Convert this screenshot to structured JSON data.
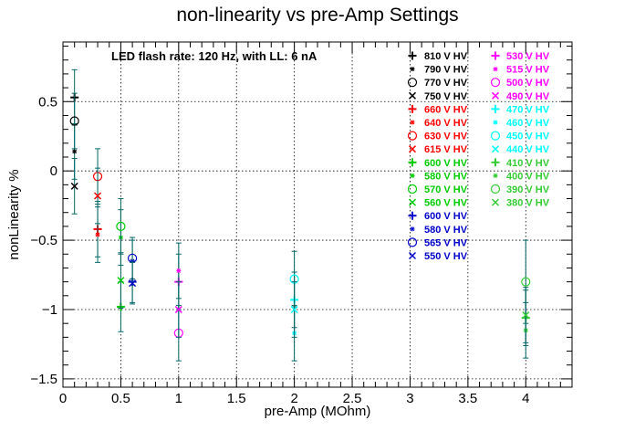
{
  "chart_data": {
    "type": "scatter",
    "title": "non-linearity vs pre-Amp Settings",
    "xlabel": "pre-Amp (MOhm)",
    "ylabel": "nonLinearity %",
    "xlim": [
      0,
      4.4
    ],
    "ylim": [
      -1.56,
      0.93
    ],
    "grid": true,
    "x_ticks": [
      "0",
      "0.5",
      "1",
      "1.5",
      "2",
      "2.5",
      "3",
      "3.5",
      "4"
    ],
    "y_ticks": [
      "0.5",
      "0",
      "−0.5",
      "−1",
      "−1.5"
    ],
    "annotation": "LED flash rate: 120 Hz, with LL: 6 nA",
    "legend_position": "top-right",
    "series": [
      {
        "name": "810 V HV",
        "color": "#000000",
        "marker": "plus",
        "points": [
          [
            0.1,
            0.53,
            0.2
          ]
        ]
      },
      {
        "name": "790 V HV",
        "color": "#000000",
        "marker": "star",
        "points": [
          [
            0.1,
            0.14,
            0.2
          ]
        ]
      },
      {
        "name": "770 V HV",
        "color": "#000000",
        "marker": "circle",
        "points": [
          [
            0.1,
            0.36,
            0.2
          ]
        ]
      },
      {
        "name": "750 V HV",
        "color": "#000000",
        "marker": "x",
        "points": [
          [
            0.1,
            -0.11,
            0.2
          ]
        ]
      },
      {
        "name": "660 V HV",
        "color": "#ff0000",
        "marker": "plus",
        "points": [
          [
            0.3,
            -0.42,
            0.2
          ]
        ]
      },
      {
        "name": "640 V HV",
        "color": "#ff0000",
        "marker": "star",
        "points": [
          [
            0.3,
            -0.46,
            0.2
          ]
        ]
      },
      {
        "name": "630 V HV",
        "color": "#ff0000",
        "marker": "circle",
        "points": [
          [
            0.3,
            -0.04,
            0.2
          ]
        ]
      },
      {
        "name": "615 V HV",
        "color": "#ff0000",
        "marker": "x",
        "points": [
          [
            0.3,
            -0.18,
            0.2
          ]
        ]
      },
      {
        "name": "600 V HV",
        "color": "#00cc00",
        "marker": "plus",
        "points": [
          [
            0.5,
            -0.98,
            0.18
          ]
        ]
      },
      {
        "name": "580 V HV",
        "color": "#00cc00",
        "marker": "star",
        "points": [
          [
            0.5,
            -0.48,
            0.2
          ]
        ]
      },
      {
        "name": "570 V HV",
        "color": "#00cc00",
        "marker": "circle",
        "points": [
          [
            0.5,
            -0.4,
            0.2
          ]
        ]
      },
      {
        "name": "560 V HV",
        "color": "#00cc00",
        "marker": "x",
        "points": [
          [
            0.5,
            -0.79,
            0.2
          ]
        ]
      },
      {
        "name": "600 V HV",
        "color": "#0000cc",
        "marker": "plus",
        "points": [
          [
            0.6,
            -0.8,
            0.15
          ]
        ]
      },
      {
        "name": "580 V HV",
        "color": "#0000cc",
        "marker": "star",
        "points": [
          [
            0.6,
            -0.65,
            0.15
          ]
        ]
      },
      {
        "name": "565 V HV",
        "color": "#0000cc",
        "marker": "circle",
        "points": [
          [
            0.6,
            -0.63,
            0.15
          ]
        ]
      },
      {
        "name": "550 V HV",
        "color": "#0000cc",
        "marker": "x",
        "points": [
          [
            0.6,
            -0.81,
            0.15
          ]
        ]
      },
      {
        "name": "530 V HV",
        "color": "#ff00ff",
        "marker": "plus",
        "points": [
          [
            1.0,
            -0.8,
            0.2
          ]
        ]
      },
      {
        "name": "515 V HV",
        "color": "#ff00ff",
        "marker": "star",
        "points": [
          [
            1.0,
            -0.72,
            0.2
          ]
        ]
      },
      {
        "name": "500 V HV",
        "color": "#ff00ff",
        "marker": "circle",
        "points": [
          [
            1.0,
            -1.17,
            0.2
          ]
        ]
      },
      {
        "name": "490 V HV",
        "color": "#ff00ff",
        "marker": "x",
        "points": [
          [
            1.0,
            -1.0,
            0.2
          ]
        ]
      },
      {
        "name": "470 V HV",
        "color": "#00ffff",
        "marker": "plus",
        "points": [
          [
            2.0,
            -0.93,
            0.2
          ]
        ]
      },
      {
        "name": "460 V HV",
        "color": "#00ffff",
        "marker": "star",
        "points": [
          [
            2.0,
            -1.17,
            0.2
          ]
        ]
      },
      {
        "name": "450 V HV",
        "color": "#00ffff",
        "marker": "circle",
        "points": [
          [
            2.0,
            -0.78,
            0.2
          ]
        ]
      },
      {
        "name": "440 V HV",
        "color": "#00ffff",
        "marker": "x",
        "points": [
          [
            2.0,
            -1.0,
            0.2
          ]
        ]
      },
      {
        "name": "410 V HV",
        "color": "#33cc33",
        "marker": "plus",
        "points": [
          [
            4.0,
            -1.06,
            0.2
          ]
        ]
      },
      {
        "name": "400 V HV",
        "color": "#33cc33",
        "marker": "star",
        "points": [
          [
            4.0,
            -1.15,
            0.2
          ]
        ]
      },
      {
        "name": "390 V HV",
        "color": "#33cc33",
        "marker": "circle",
        "points": [
          [
            4.0,
            -0.8,
            0.3
          ]
        ]
      },
      {
        "name": "380 V HV",
        "color": "#33cc33",
        "marker": "x",
        "points": [
          [
            4.0,
            -1.04,
            0.2
          ]
        ]
      }
    ]
  }
}
